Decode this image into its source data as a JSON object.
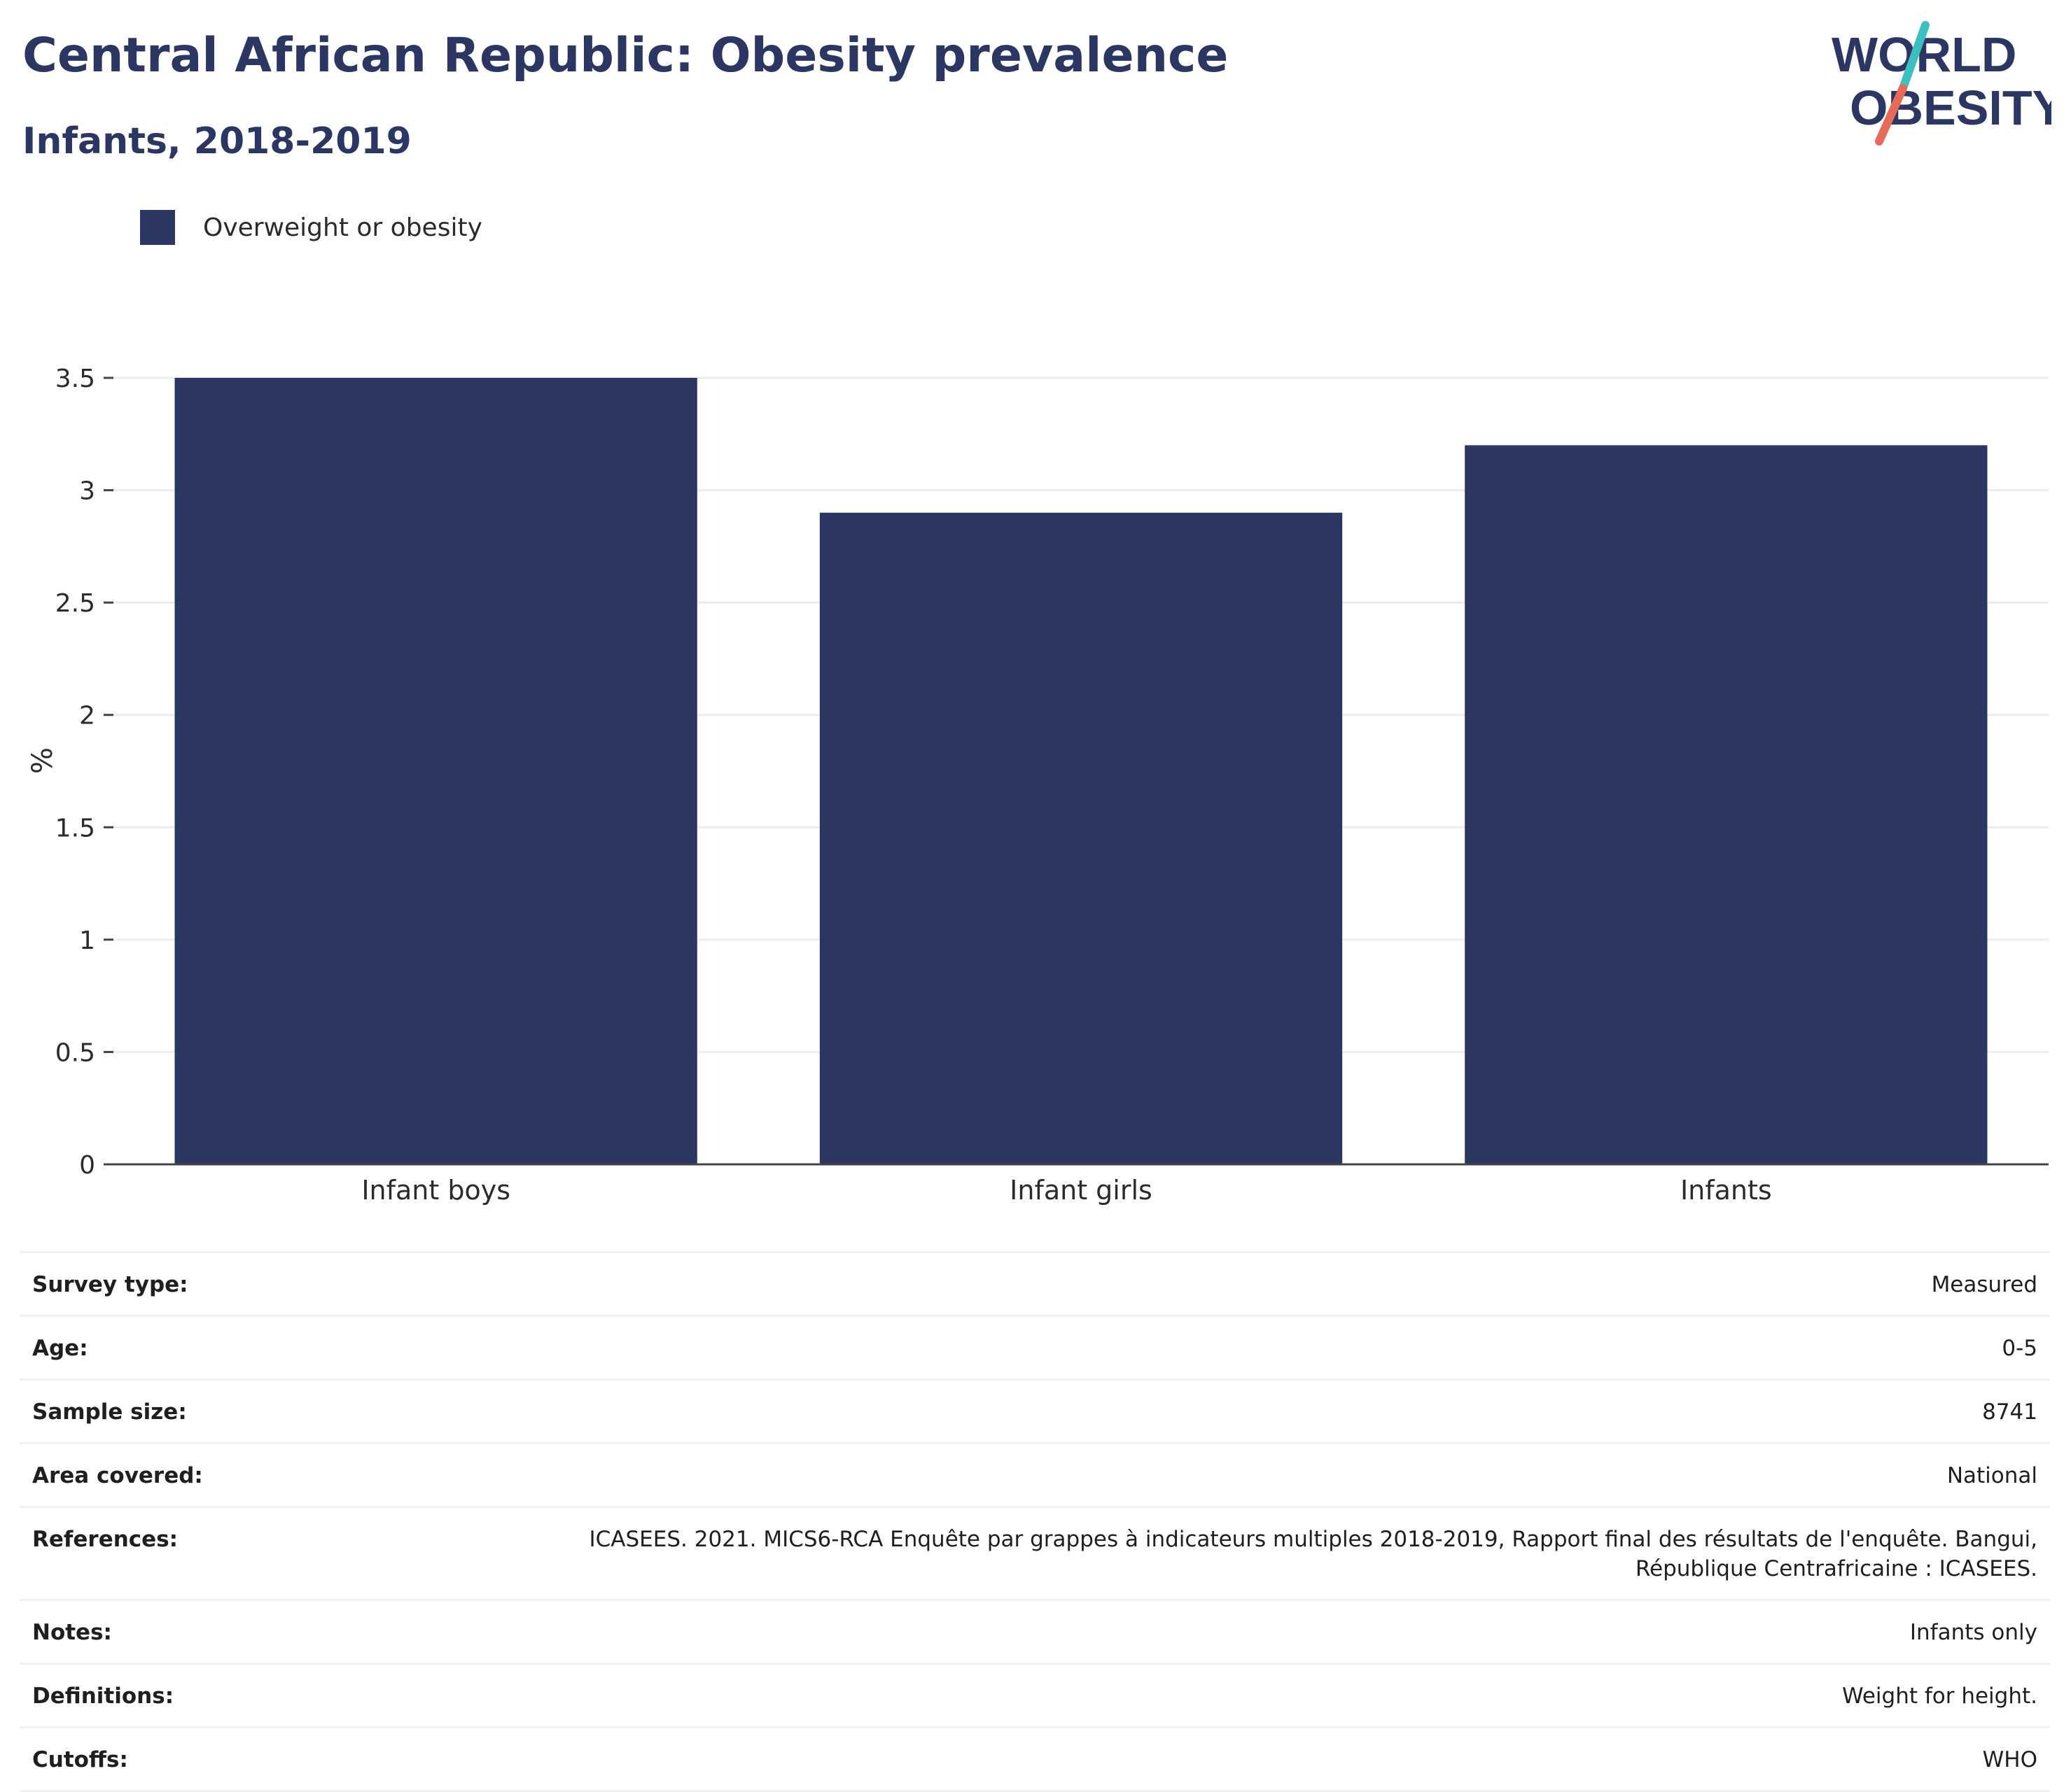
{
  "header": {
    "title": "Central African Republic: Obesity prevalence",
    "subtitle": "Infants, 2018-2019"
  },
  "logo": {
    "line1": "WORLD",
    "line2": "OBESITY",
    "colors": {
      "text": "#2b3762",
      "slash_top": "#3bbfbf",
      "slash_bottom": "#e86a5a"
    }
  },
  "legend": {
    "label": "Overweight or obesity",
    "color": "#2b3762"
  },
  "chart_data": {
    "type": "bar",
    "categories": [
      "Infant boys",
      "Infant girls",
      "Infants"
    ],
    "series": [
      {
        "name": "Overweight or obesity",
        "values": [
          3.5,
          2.9,
          3.2
        ],
        "color": "#2b3762"
      }
    ],
    "ylabel": "%",
    "ylim": [
      0,
      3.5
    ],
    "yticks": [
      0,
      0.5,
      1,
      1.5,
      2,
      2.5,
      3,
      3.5
    ],
    "ytick_labels": [
      "0",
      "0.5",
      "1",
      "1.5",
      "2",
      "2.5",
      "3",
      "3.5"
    ],
    "grid": true
  },
  "info": [
    {
      "label": "Survey type:",
      "value": "Measured"
    },
    {
      "label": "Age:",
      "value": "0-5"
    },
    {
      "label": "Sample size:",
      "value": "8741"
    },
    {
      "label": "Area covered:",
      "value": "National"
    },
    {
      "label": "References:",
      "value": "ICASEES. 2021. MICS6-RCA Enquête par grappes à indicateurs multiples 2018-2019, Rapport final des résultats de l'enquête. Bangui, République Centrafricaine : ICASEES."
    },
    {
      "label": "Notes:",
      "value": "Infants only"
    },
    {
      "label": "Definitions:",
      "value": "Weight for height."
    },
    {
      "label": "Cutoffs:",
      "value": "WHO"
    }
  ]
}
